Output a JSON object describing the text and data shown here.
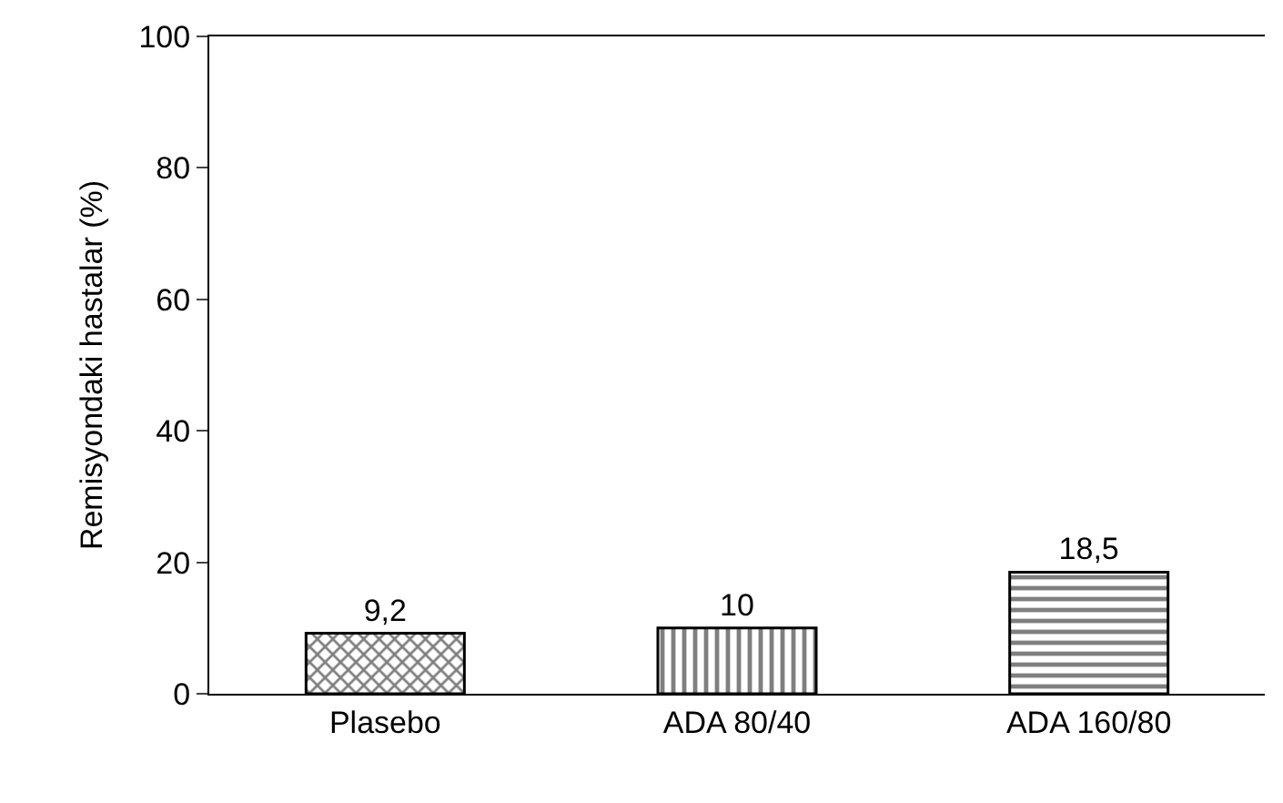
{
  "chart_data": {
    "type": "bar",
    "ylabel": "Remisyondaki hastalar (%)",
    "categories": [
      "Plasebo",
      "ADA 80/40",
      "ADA 160/80"
    ],
    "values": [
      9.2,
      10,
      18.5
    ],
    "value_labels": [
      "9,2",
      "10",
      "18,5"
    ],
    "color": "#000000",
    "ylim": [
      0,
      100
    ],
    "yticks": [
      0,
      20,
      40,
      60,
      80,
      100
    ]
  }
}
